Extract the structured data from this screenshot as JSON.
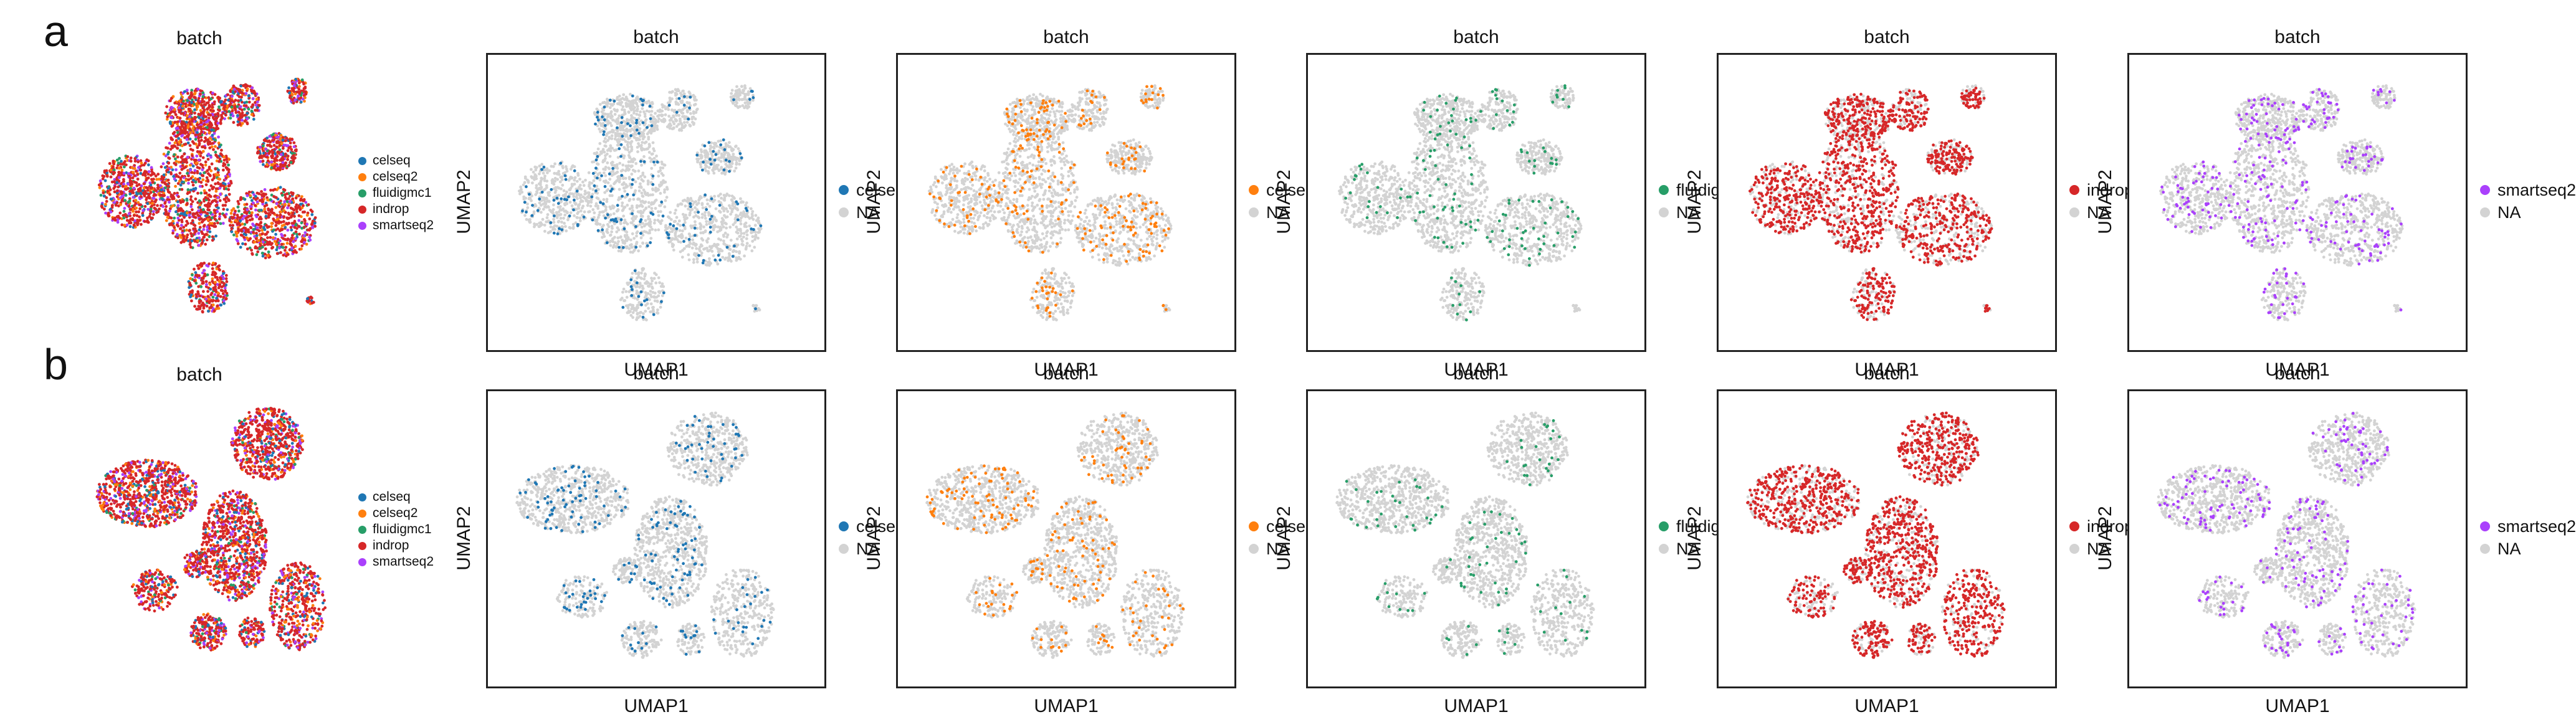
{
  "figure": {
    "rows": [
      {
        "letter": "a",
        "overview": {
          "title": "batch",
          "legend": [
            "celseq",
            "celseq2",
            "fluidigmc1",
            "indrop",
            "smartseq2"
          ]
        },
        "panels": [
          {
            "title": "batch",
            "xlabel": "UMAP1",
            "ylabel": "UMAP2",
            "legend": [
              "celseq",
              "NA"
            ],
            "highlight": "celseq"
          },
          {
            "title": "batch",
            "xlabel": "UMAP1",
            "ylabel": "UMAP2",
            "legend": [
              "celseq2",
              "NA"
            ],
            "highlight": "celseq2"
          },
          {
            "title": "batch",
            "xlabel": "UMAP1",
            "ylabel": "UMAP2",
            "legend": [
              "fluidigmc1",
              "NA"
            ],
            "highlight": "fluidigmc1"
          },
          {
            "title": "batch",
            "xlabel": "UMAP1",
            "ylabel": "UMAP2",
            "legend": [
              "indrop",
              "NA"
            ],
            "highlight": "indrop"
          },
          {
            "title": "batch",
            "xlabel": "UMAP1",
            "ylabel": "UMAP2",
            "legend": [
              "smartseq2",
              "NA"
            ],
            "highlight": "smartseq2"
          }
        ]
      },
      {
        "letter": "b",
        "overview": {
          "title": "batch",
          "legend": [
            "celseq",
            "celseq2",
            "fluidigmc1",
            "indrop",
            "smartseq2"
          ]
        },
        "panels": [
          {
            "title": "batch",
            "xlabel": "UMAP1",
            "ylabel": "UMAP2",
            "legend": [
              "celseq",
              "NA"
            ],
            "highlight": "celseq"
          },
          {
            "title": "batch",
            "xlabel": "UMAP1",
            "ylabel": "UMAP2",
            "legend": [
              "celseq2",
              "NA"
            ],
            "highlight": "celseq2"
          },
          {
            "title": "batch",
            "xlabel": "UMAP1",
            "ylabel": "UMAP2",
            "legend": [
              "fluidigmc1",
              "NA"
            ],
            "highlight": "fluidigmc1"
          },
          {
            "title": "batch",
            "xlabel": "UMAP1",
            "ylabel": "UMAP2",
            "legend": [
              "indrop",
              "NA"
            ],
            "highlight": "indrop"
          },
          {
            "title": "batch",
            "xlabel": "UMAP1",
            "ylabel": "UMAP2",
            "legend": [
              "smartseq2",
              "NA"
            ],
            "highlight": "smartseq2"
          }
        ]
      }
    ]
  },
  "colors": {
    "celseq": "#1f77b4",
    "celseq2": "#ff7f0e",
    "fluidigmc1": "#279e68",
    "indrop": "#d62728",
    "smartseq2": "#aa40fc",
    "NA": "#d3d3d3"
  },
  "chart_data": {
    "type": "scatter",
    "title": "batch",
    "xlabel": "UMAP1",
    "ylabel": "UMAP2",
    "categories": [
      "celseq",
      "celseq2",
      "fluidigmc1",
      "indrop",
      "smartseq2",
      "NA"
    ],
    "legend_placement": "right",
    "grid": false
  }
}
